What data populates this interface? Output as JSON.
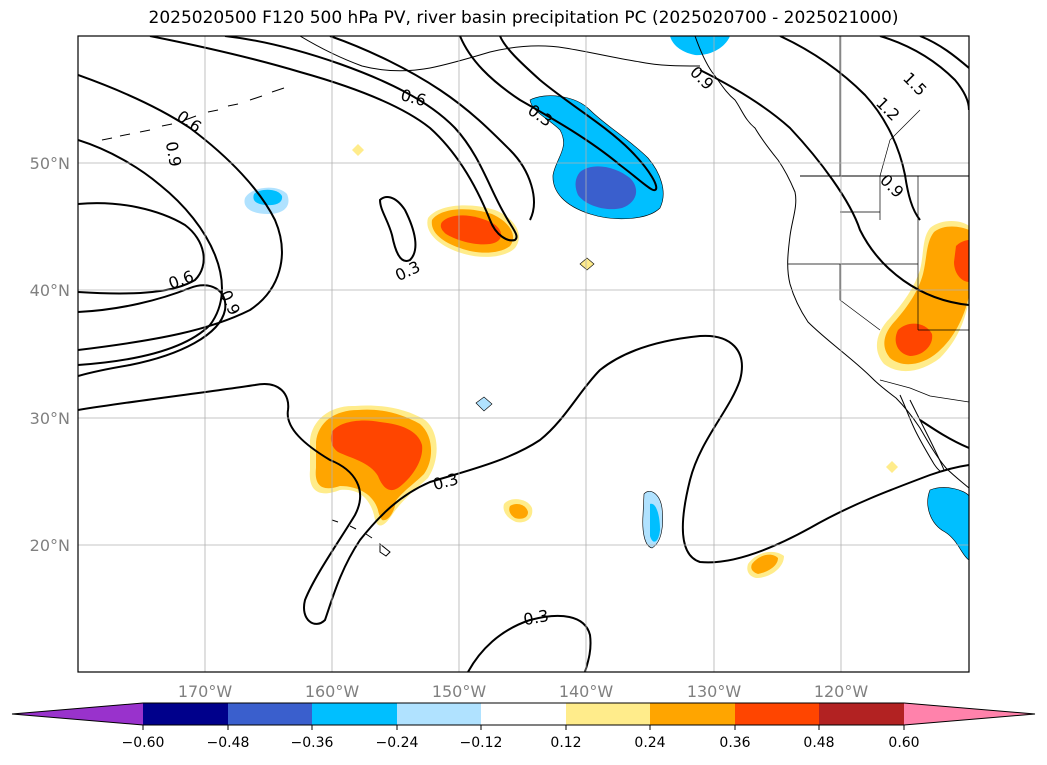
{
  "title": "2025020500 F120 500 hPa PV, river basin precipitation PC (2025020700 - 2025021000)",
  "map": {
    "lon_labels": [
      "170°W",
      "160°W",
      "150°W",
      "140°W",
      "130°W",
      "120°W"
    ],
    "lat_labels": [
      "50°N",
      "40°N",
      "30°N",
      "20°N"
    ],
    "contour_labels": [
      "0.6",
      "0.9",
      "0.3",
      "0.6",
      "0.6",
      "0.9",
      "0.3",
      "0.3",
      "0.3",
      "0.9",
      "1.2",
      "1.5",
      "0.9"
    ]
  },
  "colorbar": {
    "ticks": [
      "−0.60",
      "−0.48",
      "−0.36",
      "−0.24",
      "−0.12",
      "0.12",
      "0.24",
      "0.36",
      "0.48",
      "0.60"
    ],
    "colors": [
      "#9932cc",
      "#00008b",
      "#3a5fcd",
      "#00bfff",
      "#b0e2ff",
      "#ffffff",
      "#ffec8b",
      "#ffa500",
      "#ff4500",
      "#b22222",
      "#ff82ab"
    ]
  }
}
